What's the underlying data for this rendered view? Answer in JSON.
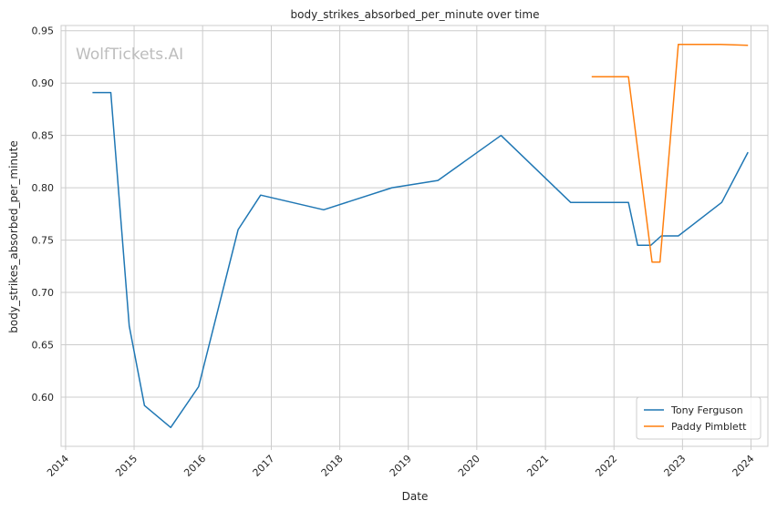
{
  "chart_data": {
    "type": "line",
    "title": "body_strikes_absorbed_per_minute over time",
    "xlabel": "Date",
    "ylabel": "body_strikes_absorbed_per_minute",
    "watermark": "WolfTickets.AI",
    "xlim": [
      "2013-12-08",
      "2024-03-31"
    ],
    "ylim": [
      0.553,
      0.955
    ],
    "x_ticks": [
      "2014",
      "2015",
      "2016",
      "2017",
      "2018",
      "2019",
      "2020",
      "2021",
      "2022",
      "2023",
      "2024"
    ],
    "y_ticks": [
      "0.60",
      "0.65",
      "0.70",
      "0.75",
      "0.80",
      "0.85",
      "0.90",
      "0.95"
    ],
    "y_tick_values": [
      0.6,
      0.65,
      0.7,
      0.75,
      0.8,
      0.85,
      0.9,
      0.95
    ],
    "grid": true,
    "legend_position": "bottom-right",
    "series": [
      {
        "name": "Tony Ferguson",
        "color": "#1f77b4",
        "x": [
          "2014-05-24",
          "2014-08-30",
          "2014-12-06",
          "2015-02-25",
          "2015-07-15",
          "2015-12-11",
          "2016-07-08",
          "2016-11-05",
          "2017-10-07",
          "2018-10-06",
          "2019-06-08",
          "2020-05-09",
          "2021-05-15",
          "2022-03-19",
          "2022-05-07",
          "2022-07-16",
          "2022-09-10",
          "2022-12-10",
          "2023-07-29",
          "2023-12-16"
        ],
        "y": [
          0.891,
          0.891,
          0.668,
          0.592,
          0.571,
          0.61,
          0.76,
          0.793,
          0.779,
          0.8,
          0.807,
          0.85,
          0.786,
          0.786,
          0.745,
          0.745,
          0.754,
          0.754,
          0.786,
          0.834
        ]
      },
      {
        "name": "Paddy Pimblett",
        "color": "#ff7f0e",
        "x": [
          "2021-09-04",
          "2022-03-19",
          "2022-07-23",
          "2022-09-03",
          "2022-12-10",
          "2023-07-22",
          "2023-12-16"
        ],
        "y": [
          0.906,
          0.906,
          0.729,
          0.729,
          0.937,
          0.937,
          0.936
        ]
      }
    ]
  }
}
